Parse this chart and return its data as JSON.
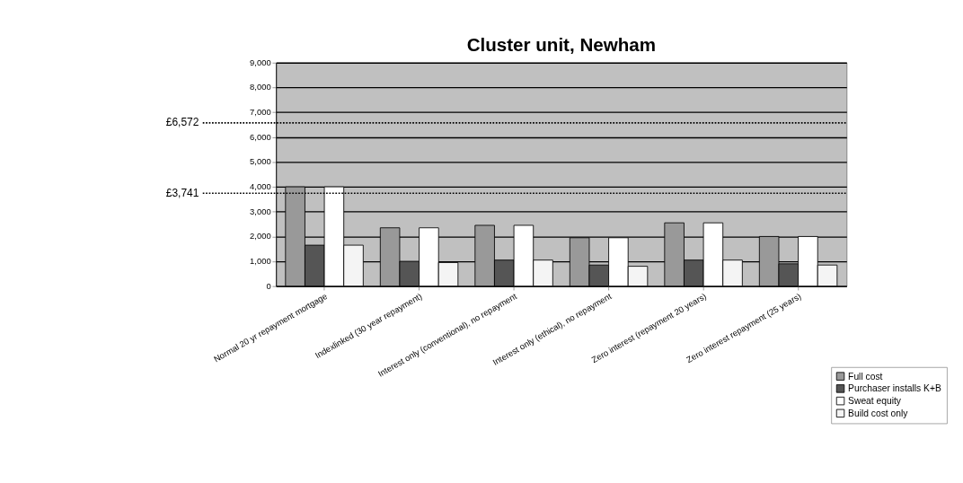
{
  "chart_data": {
    "type": "bar",
    "title": "Cluster unit, Newham",
    "categories": [
      "Normal 20 yr repayment mortgage",
      "Indexlinked (30 year repayment)",
      "Interest only (conventional), no repayment",
      "Interest only (ethical), no repayment",
      "Zero interest (repayment 20 years)",
      "Zero interest repayment (25 years)"
    ],
    "series": [
      {
        "name": "Full cost",
        "color": "#999999",
        "values": [
          4000,
          2350,
          2450,
          1950,
          2550,
          2000
        ]
      },
      {
        "name": "Purchaser installs K+B",
        "color": "#555555",
        "values": [
          1650,
          1000,
          1050,
          850,
          1050,
          900
        ]
      },
      {
        "name": "Sweat equity",
        "color": "#ffffff",
        "values": [
          4000,
          2350,
          2450,
          1950,
          2550,
          2000
        ]
      },
      {
        "name": "Build cost only",
        "color": "#f4f4f4",
        "values": [
          1650,
          950,
          1050,
          800,
          1050,
          850
        ]
      }
    ],
    "ylim": [
      0,
      9000
    ],
    "yticks": [
      0,
      {
        "value": 1000,
        "label": "1,000"
      },
      {
        "value": 2000,
        "label": "2,000"
      },
      {
        "value": 3000,
        "label": "3,000"
      },
      {
        "value": 4000,
        "label": "4,000"
      },
      {
        "value": 5000,
        "label": "5,000"
      },
      {
        "value": 6000,
        "label": "6,000"
      },
      {
        "value": 7000,
        "label": "7,000"
      },
      {
        "value": 8000,
        "label": "8,000"
      },
      {
        "value": 9000,
        "label": "9,000"
      }
    ],
    "grid": "y",
    "legend": "bottom right",
    "ref_lines": [
      {
        "axis": "y",
        "value": 6572,
        "label": "£6,572",
        "line_style": "dotted"
      },
      {
        "axis": "y",
        "value": 3741,
        "label": "£3,741",
        "line_style": "dotted"
      }
    ]
  }
}
